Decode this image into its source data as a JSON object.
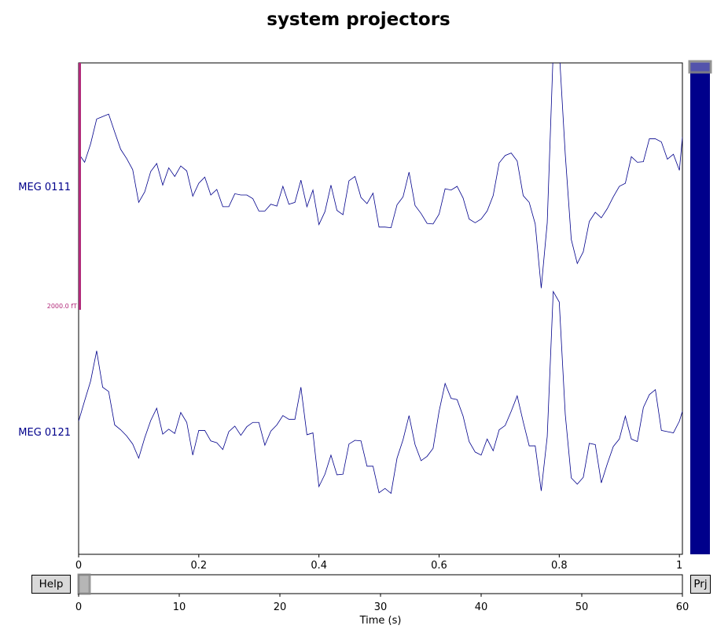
{
  "title": "system projectors",
  "buttons": {
    "help": "Help",
    "projectors": "Prj"
  },
  "colors": {
    "trace": "#00008b",
    "scalebar": "#b22a7a",
    "channel_label": "#00008b",
    "scrollbar_fill": "#00008b",
    "button_face": "#d9d9d9"
  },
  "chart_data": [
    {
      "type": "line",
      "name": "raw-traces",
      "xlim": [
        0,
        1.005
      ],
      "x_ticks": [
        0,
        0.2,
        0.4,
        0.6,
        0.8,
        1
      ],
      "x_tick_labels": [
        "0",
        "0.2",
        "0.4",
        "0.6",
        "0.8",
        "1"
      ],
      "scalebar_label": "2000.0 fT",
      "grid": false,
      "series": [
        {
          "name": "MEG 0111",
          "x": [
            0.0,
            0.01,
            0.02,
            0.03,
            0.04,
            0.05,
            0.06,
            0.07,
            0.08,
            0.09,
            0.1,
            0.11,
            0.12,
            0.13,
            0.14,
            0.15,
            0.16,
            0.17,
            0.18,
            0.19,
            0.2,
            0.21,
            0.22,
            0.23,
            0.24,
            0.25,
            0.26,
            0.27,
            0.28,
            0.29,
            0.3,
            0.31,
            0.32,
            0.33,
            0.34,
            0.35,
            0.36,
            0.37,
            0.38,
            0.39,
            0.4,
            0.41,
            0.42,
            0.43,
            0.44,
            0.45,
            0.46,
            0.47,
            0.48,
            0.49,
            0.5,
            0.51,
            0.52,
            0.53,
            0.54,
            0.55,
            0.56,
            0.57,
            0.58,
            0.59,
            0.6,
            0.61,
            0.62,
            0.63,
            0.64,
            0.65,
            0.66,
            0.67,
            0.68,
            0.69,
            0.7,
            0.71,
            0.72,
            0.73,
            0.74,
            0.75,
            0.76,
            0.77,
            0.78,
            0.79,
            0.8,
            0.81,
            0.82,
            0.83,
            0.84,
            0.85,
            0.86,
            0.87,
            0.88,
            0.89,
            0.9,
            0.91,
            0.92,
            0.93,
            0.94,
            0.95,
            0.96,
            0.97,
            0.98,
            0.99,
            1.0,
            1.005
          ],
          "y": [
            530,
            390,
            690,
            1090,
            1130,
            1170,
            880,
            600,
            450,
            270,
            -260,
            -90,
            240,
            370,
            20,
            300,
            160,
            330,
            250,
            -160,
            50,
            150,
            -140,
            -50,
            -330,
            -330,
            -120,
            -140,
            -140,
            -200,
            -400,
            -400,
            -290,
            -320,
            0,
            -290,
            -260,
            100,
            -330,
            -60,
            -620,
            -410,
            20,
            -390,
            -460,
            90,
            160,
            -180,
            -280,
            -110,
            -660,
            -660,
            -670,
            -300,
            -170,
            230,
            -310,
            -440,
            -600,
            -610,
            -450,
            -40,
            -60,
            0,
            -190,
            -530,
            -590,
            -530,
            -400,
            -150,
            380,
            500,
            540,
            410,
            -150,
            -260,
            -610,
            -1650,
            -590,
            2200,
            2200,
            520,
            -860,
            -1250,
            -1060,
            -570,
            -420,
            -510,
            -360,
            -170,
            0,
            50,
            480,
            390,
            400,
            770,
            770,
            720,
            440,
            520,
            260,
            800
          ]
        },
        {
          "name": "MEG 0121",
          "x": [
            0.0,
            0.01,
            0.02,
            0.03,
            0.04,
            0.05,
            0.06,
            0.07,
            0.08,
            0.09,
            0.1,
            0.11,
            0.12,
            0.13,
            0.14,
            0.15,
            0.16,
            0.17,
            0.18,
            0.19,
            0.2,
            0.21,
            0.22,
            0.23,
            0.24,
            0.25,
            0.26,
            0.27,
            0.28,
            0.29,
            0.3,
            0.31,
            0.32,
            0.33,
            0.34,
            0.35,
            0.36,
            0.37,
            0.38,
            0.39,
            0.4,
            0.41,
            0.42,
            0.43,
            0.44,
            0.45,
            0.46,
            0.47,
            0.48,
            0.49,
            0.5,
            0.51,
            0.52,
            0.53,
            0.54,
            0.55,
            0.56,
            0.57,
            0.58,
            0.59,
            0.6,
            0.61,
            0.62,
            0.63,
            0.64,
            0.65,
            0.66,
            0.67,
            0.68,
            0.69,
            0.7,
            0.71,
            0.72,
            0.73,
            0.74,
            0.75,
            0.76,
            0.77,
            0.78,
            0.79,
            0.8,
            0.81,
            0.82,
            0.83,
            0.84,
            0.85,
            0.86,
            0.87,
            0.88,
            0.89,
            0.9,
            0.91,
            0.92,
            0.93,
            0.94,
            0.95,
            0.96,
            0.97,
            0.98,
            0.99,
            1.0,
            1.005
          ],
          "y": [
            170,
            500,
            820,
            1310,
            720,
            650,
            110,
            30,
            -70,
            -200,
            -430,
            -100,
            180,
            380,
            -40,
            40,
            -30,
            310,
            150,
            -380,
            20,
            20,
            -150,
            -180,
            -290,
            0,
            90,
            -60,
            80,
            150,
            150,
            -220,
            10,
            110,
            260,
            200,
            200,
            720,
            -50,
            -20,
            -890,
            -690,
            -380,
            -700,
            -690,
            -200,
            -140,
            -150,
            -560,
            -560,
            -990,
            -920,
            -1000,
            -430,
            -130,
            260,
            -210,
            -470,
            -400,
            -270,
            330,
            780,
            540,
            520,
            250,
            -160,
            -330,
            -380,
            -120,
            -310,
            30,
            100,
            330,
            580,
            160,
            -230,
            -230,
            -960,
            -80,
            2270,
            2100,
            280,
            -750,
            -850,
            -740,
            -190,
            -210,
            -830,
            -520,
            -240,
            -120,
            250,
            -120,
            -160,
            390,
            600,
            680,
            20,
            0,
            -20,
            170,
            330
          ]
        }
      ]
    },
    {
      "type": "bar",
      "name": "time-scroll",
      "xlim": [
        0,
        60
      ],
      "x_ticks": [
        0,
        10,
        20,
        30,
        40,
        50,
        60
      ],
      "x_tick_labels": [
        "0",
        "10",
        "20",
        "30",
        "40",
        "50",
        "60"
      ],
      "xlabel": "Time (s)",
      "view_window": [
        0,
        1
      ]
    },
    {
      "type": "bar",
      "name": "channel-scroll",
      "channels_total": 2,
      "channels_visible": 2
    }
  ]
}
